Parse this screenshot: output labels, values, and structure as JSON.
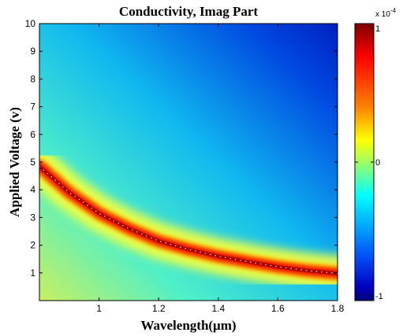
{
  "chart_data": {
    "type": "heatmap",
    "title": "Conductivity, Imag Part",
    "xlabel": "Wavelength(μm)",
    "ylabel": "Applied Voltage (v)",
    "xlim": [
      0.8,
      1.8
    ],
    "ylim": [
      0,
      10
    ],
    "x_ticks": [
      "1",
      "1.2",
      "1.4",
      "1.6",
      "1.8"
    ],
    "y_ticks": [
      "1",
      "2",
      "3",
      "4",
      "5",
      "6",
      "7",
      "8",
      "9",
      "10"
    ],
    "colorbar": {
      "exponent_label": "x 10",
      "exponent_power": "-4",
      "ticks": [
        "1",
        "0",
        "-1"
      ],
      "range": [
        -1,
        1
      ],
      "colormap": "jet"
    },
    "resonance_ridge": {
      "wavelength": [
        0.8,
        0.9,
        1.0,
        1.1,
        1.2,
        1.3,
        1.4,
        1.5,
        1.6,
        1.7,
        1.8
      ],
      "voltage": [
        4.85,
        3.9,
        3.15,
        2.6,
        2.15,
        1.85,
        1.6,
        1.4,
        1.22,
        1.08,
        0.98
      ]
    }
  }
}
